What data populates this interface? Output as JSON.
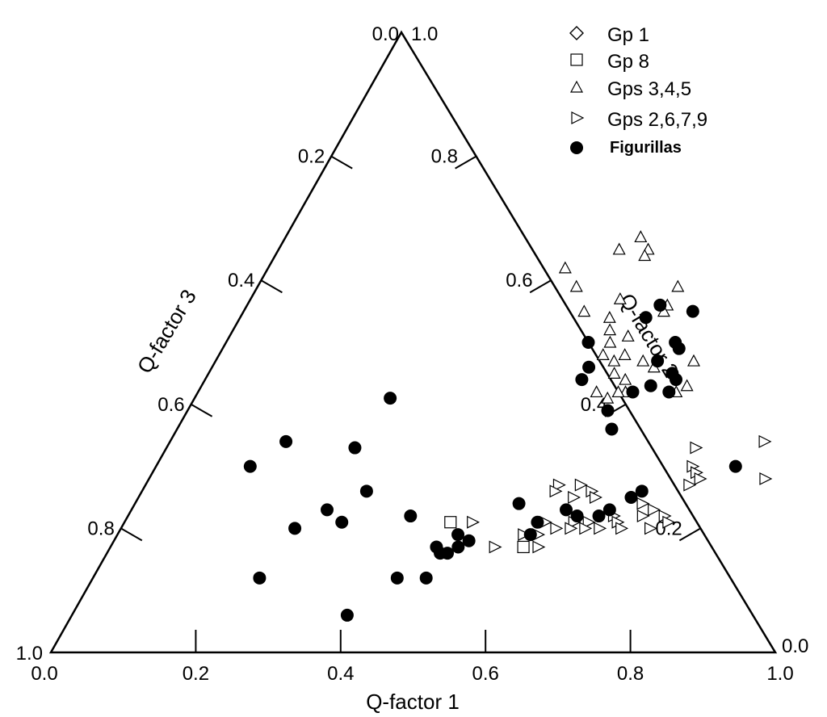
{
  "chart_data": {
    "type": "scatter",
    "subtype": "ternary",
    "title": "",
    "axes": {
      "bottom": {
        "label": "Q-factor 1",
        "range": [
          0,
          1
        ],
        "ticks": [
          "0.0",
          "0.2",
          "0.4",
          "0.6",
          "0.8",
          "1.0"
        ]
      },
      "right": {
        "label": "Q-factor 2",
        "range": [
          0,
          1
        ],
        "ticks": [
          "0.0",
          "0.2",
          "0.4",
          "0.6",
          "0.8",
          "1.0"
        ]
      },
      "left": {
        "label": "Q-factor 3",
        "range": [
          0,
          1
        ],
        "ticks": [
          "0.0",
          "0.2",
          "0.4",
          "0.6",
          "0.8",
          "1.0"
        ]
      }
    },
    "grid": false,
    "legend_position": "top-right",
    "series": [
      {
        "name": "Gp 1",
        "marker": "diamond-open",
        "points": []
      },
      {
        "name": "Gp 8",
        "marker": "square-open",
        "points": [
          {
            "x": 0.45,
            "y": 0.21
          },
          {
            "x": 0.57,
            "y": 0.17
          }
        ]
      },
      {
        "name": "Gps 3,4,5",
        "marker": "triangle-up-open",
        "points": [
          {
            "x": 0.49,
            "y": 0.67
          },
          {
            "x": 0.47,
            "y": 0.65
          },
          {
            "x": 0.51,
            "y": 0.65
          },
          {
            "x": 0.51,
            "y": 0.64
          },
          {
            "x": 0.41,
            "y": 0.62
          },
          {
            "x": 0.44,
            "y": 0.59
          },
          {
            "x": 0.58,
            "y": 0.59
          },
          {
            "x": 0.51,
            "y": 0.57
          },
          {
            "x": 0.58,
            "y": 0.56
          },
          {
            "x": 0.47,
            "y": 0.55
          },
          {
            "x": 0.58,
            "y": 0.55
          },
          {
            "x": 0.51,
            "y": 0.54
          },
          {
            "x": 0.52,
            "y": 0.52
          },
          {
            "x": 0.55,
            "y": 0.51
          },
          {
            "x": 0.53,
            "y": 0.5
          },
          {
            "x": 0.56,
            "y": 0.48
          },
          {
            "x": 0.53,
            "y": 0.48
          },
          {
            "x": 0.59,
            "y": 0.47
          },
          {
            "x": 0.55,
            "y": 0.47
          },
          {
            "x": 0.66,
            "y": 0.47
          },
          {
            "x": 0.61,
            "y": 0.46
          },
          {
            "x": 0.56,
            "y": 0.45
          },
          {
            "x": 0.58,
            "y": 0.44
          },
          {
            "x": 0.67,
            "y": 0.43
          },
          {
            "x": 0.59,
            "y": 0.42
          },
          {
            "x": 0.55,
            "y": 0.42
          },
          {
            "x": 0.58,
            "y": 0.42
          },
          {
            "x": 0.66,
            "y": 0.42
          },
          {
            "x": 0.57,
            "y": 0.41
          }
        ]
      },
      {
        "name": "Gps 2,6,7,9",
        "marker": "triangle-right-open",
        "points": [
          {
            "x": 0.73,
            "y": 0.33
          },
          {
            "x": 0.82,
            "y": 0.34
          },
          {
            "x": 0.74,
            "y": 0.3
          },
          {
            "x": 0.75,
            "y": 0.29
          },
          {
            "x": 0.76,
            "y": 0.28
          },
          {
            "x": 0.75,
            "y": 0.27
          },
          {
            "x": 0.85,
            "y": 0.28
          },
          {
            "x": 0.57,
            "y": 0.27
          },
          {
            "x": 0.6,
            "y": 0.27
          },
          {
            "x": 0.57,
            "y": 0.26
          },
          {
            "x": 0.62,
            "y": 0.26
          },
          {
            "x": 0.6,
            "y": 0.25
          },
          {
            "x": 0.63,
            "y": 0.25
          },
          {
            "x": 0.7,
            "y": 0.24
          },
          {
            "x": 0.72,
            "y": 0.23
          },
          {
            "x": 0.74,
            "y": 0.22
          },
          {
            "x": 0.71,
            "y": 0.22
          },
          {
            "x": 0.67,
            "y": 0.22
          },
          {
            "x": 0.68,
            "y": 0.21
          },
          {
            "x": 0.75,
            "y": 0.21
          },
          {
            "x": 0.73,
            "y": 0.2
          },
          {
            "x": 0.64,
            "y": 0.21
          },
          {
            "x": 0.62,
            "y": 0.21
          },
          {
            "x": 0.58,
            "y": 0.21
          },
          {
            "x": 0.48,
            "y": 0.21
          },
          {
            "x": 0.6,
            "y": 0.2
          },
          {
            "x": 0.62,
            "y": 0.2
          },
          {
            "x": 0.64,
            "y": 0.2
          },
          {
            "x": 0.66,
            "y": 0.2
          },
          {
            "x": 0.69,
            "y": 0.2
          },
          {
            "x": 0.58,
            "y": 0.19
          },
          {
            "x": 0.56,
            "y": 0.19
          },
          {
            "x": 0.53,
            "y": 0.17
          },
          {
            "x": 0.59,
            "y": 0.17
          }
        ]
      },
      {
        "name": "Figurillas",
        "marker": "circle-filled",
        "points": [
          {
            "x": 0.57,
            "y": 0.56
          },
          {
            "x": 0.62,
            "y": 0.55
          },
          {
            "x": 0.56,
            "y": 0.54
          },
          {
            "x": 0.5,
            "y": 0.5
          },
          {
            "x": 0.62,
            "y": 0.5
          },
          {
            "x": 0.63,
            "y": 0.49
          },
          {
            "x": 0.61,
            "y": 0.47
          },
          {
            "x": 0.52,
            "y": 0.46
          },
          {
            "x": 0.64,
            "y": 0.45
          },
          {
            "x": 0.65,
            "y": 0.44
          },
          {
            "x": 0.62,
            "y": 0.43
          },
          {
            "x": 0.65,
            "y": 0.42
          },
          {
            "x": 0.52,
            "y": 0.44
          },
          {
            "x": 0.6,
            "y": 0.42
          },
          {
            "x": 0.58,
            "y": 0.39
          },
          {
            "x": 0.6,
            "y": 0.36
          },
          {
            "x": 0.27,
            "y": 0.41
          },
          {
            "x": 0.16,
            "y": 0.34
          },
          {
            "x": 0.26,
            "y": 0.33
          },
          {
            "x": 0.13,
            "y": 0.3
          },
          {
            "x": 0.8,
            "y": 0.3
          },
          {
            "x": 0.31,
            "y": 0.26
          },
          {
            "x": 0.27,
            "y": 0.23
          },
          {
            "x": 0.24,
            "y": 0.2
          },
          {
            "x": 0.3,
            "y": 0.21
          },
          {
            "x": 0.39,
            "y": 0.22
          },
          {
            "x": 0.53,
            "y": 0.24
          },
          {
            "x": 0.6,
            "y": 0.23
          },
          {
            "x": 0.66,
            "y": 0.23
          },
          {
            "x": 0.68,
            "y": 0.25
          },
          {
            "x": 0.69,
            "y": 0.26
          },
          {
            "x": 0.65,
            "y": 0.22
          },
          {
            "x": 0.62,
            "y": 0.22
          },
          {
            "x": 0.57,
            "y": 0.21
          },
          {
            "x": 0.57,
            "y": 0.19
          },
          {
            "x": 0.47,
            "y": 0.19
          },
          {
            "x": 0.45,
            "y": 0.17
          },
          {
            "x": 0.46,
            "y": 0.16
          },
          {
            "x": 0.47,
            "y": 0.16
          },
          {
            "x": 0.48,
            "y": 0.17
          },
          {
            "x": 0.49,
            "y": 0.18
          },
          {
            "x": 0.42,
            "y": 0.12
          },
          {
            "x": 0.46,
            "y": 0.12
          },
          {
            "x": 0.23,
            "y": 0.12
          },
          {
            "x": 0.38,
            "y": 0.06
          }
        ]
      }
    ]
  }
}
